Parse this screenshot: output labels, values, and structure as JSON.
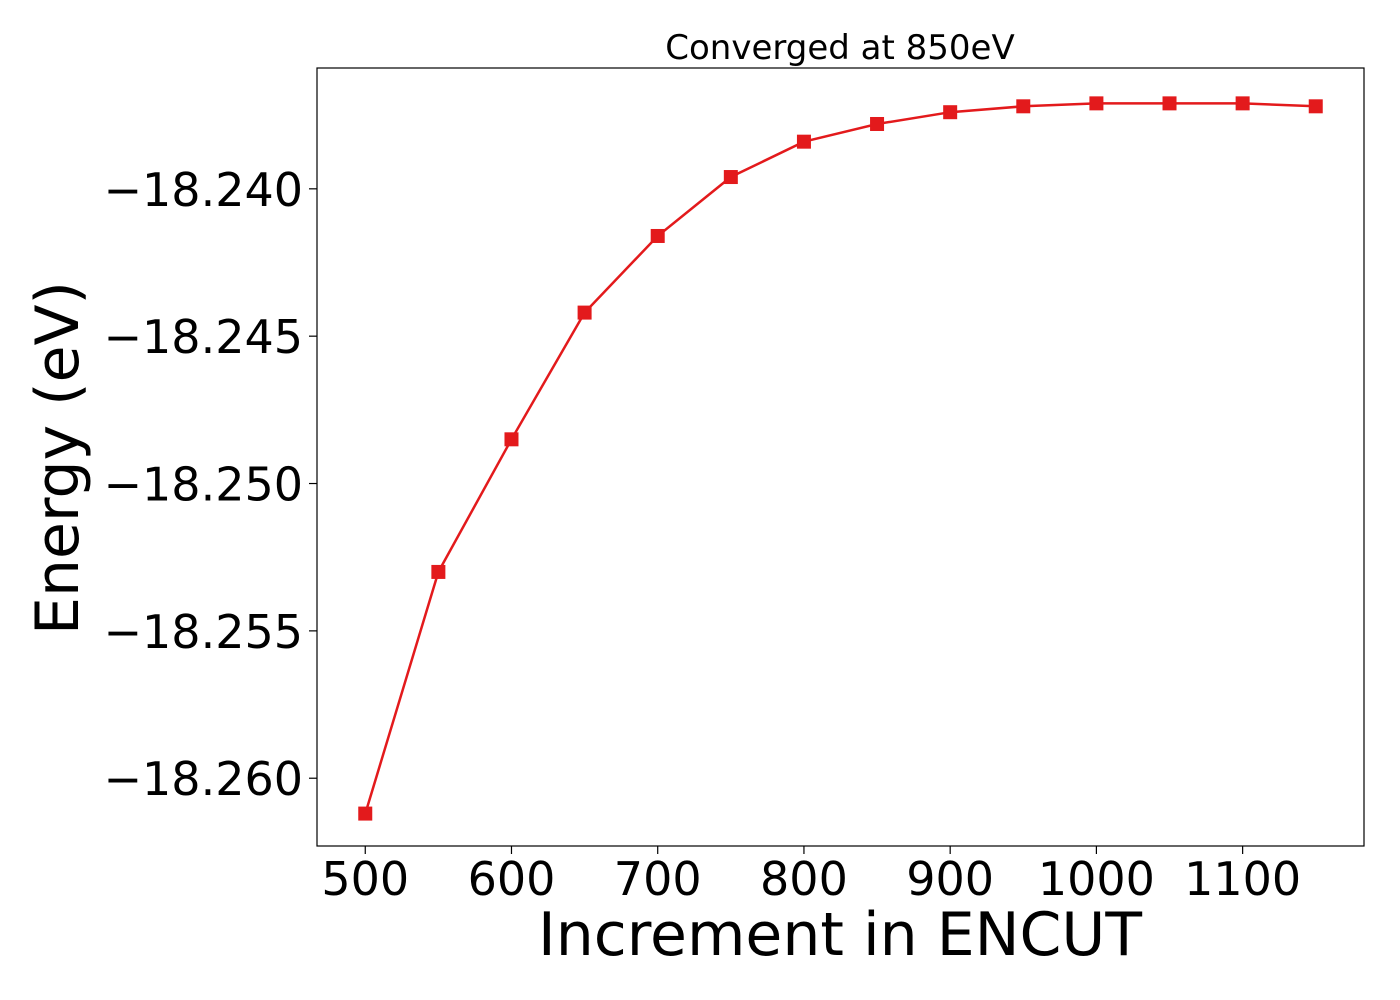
{
  "chart_data": {
    "type": "line",
    "title": "Converged at 850eV",
    "xlabel": "Increment in ENCUT",
    "ylabel": "Energy (eV)",
    "xlim": [
      467,
      1183
    ],
    "ylim": [
      -18.2623,
      -18.2359
    ],
    "x_ticks": [
      500,
      600,
      700,
      800,
      900,
      1000,
      1100
    ],
    "x_tick_labels": [
      "500",
      "600",
      "700",
      "800",
      "900",
      "1000",
      "1100"
    ],
    "y_ticks": [
      -18.24,
      -18.245,
      -18.25,
      -18.255,
      -18.26
    ],
    "y_tick_labels": [
      "−18.240",
      "−18.245",
      "−18.250",
      "−18.255",
      "−18.260"
    ],
    "grid": false,
    "series": [
      {
        "color": "#e31a1c",
        "marker": "square",
        "x": [
          500,
          550,
          600,
          650,
          700,
          750,
          800,
          850,
          900,
          950,
          1000,
          1050,
          1100,
          1150
        ],
        "y": [
          -18.2612,
          -18.253,
          -18.2485,
          -18.2442,
          -18.2416,
          -18.2396,
          -18.2384,
          -18.2378,
          -18.2374,
          -18.2372,
          -18.2371,
          -18.2371,
          -18.2371,
          -18.2372
        ]
      }
    ]
  }
}
